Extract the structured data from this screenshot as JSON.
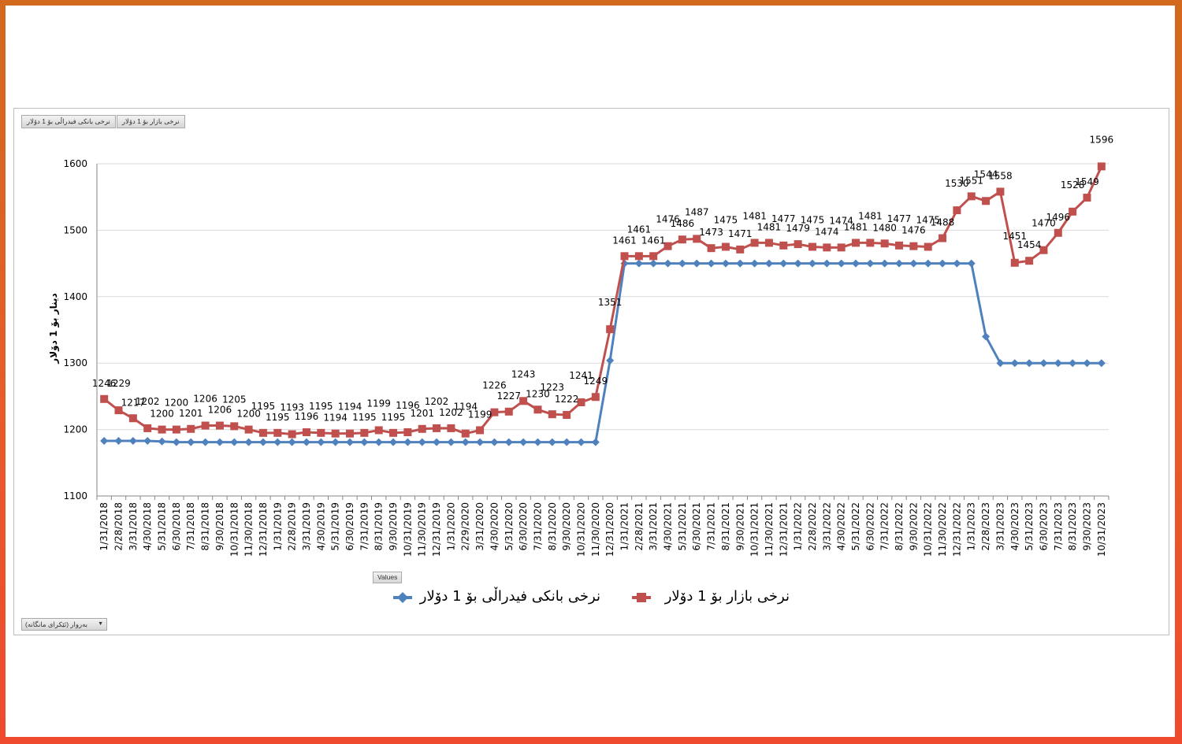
{
  "field_buttons": [
    "نرخی بانکی فیدراڵی بۆ 1 دۆلار",
    "نرخی بازار بۆ 1 دۆلار"
  ],
  "values_button": "Values",
  "filter_button": "بەروار (ئێکرای مانگانە)",
  "colors": {
    "bank": "#4f81bd",
    "market": "#c0504d",
    "grid": "#d9d9d9",
    "axis": "#868686"
  },
  "chart_data": {
    "type": "line",
    "title": "",
    "xlabel": "",
    "ylabel": "دینار بۆ 1 دۆلار",
    "ylim": [
      1100,
      1600
    ],
    "yticks": [
      1100,
      1200,
      1300,
      1400,
      1500,
      1600
    ],
    "grid": true,
    "legend_position": "bottom",
    "x": [
      "1/31/2018",
      "2/28/2018",
      "3/31/2018",
      "4/30/2018",
      "5/31/2018",
      "6/30/2018",
      "7/31/2018",
      "8/31/2018",
      "9/30/2018",
      "10/31/2018",
      "11/30/2018",
      "12/31/2018",
      "1/31/2019",
      "2/28/2019",
      "3/31/2019",
      "4/30/2019",
      "5/31/2019",
      "6/30/2019",
      "7/31/2019",
      "8/31/2019",
      "9/30/2019",
      "10/31/2019",
      "11/30/2019",
      "12/31/2019",
      "1/31/2020",
      "2/29/2020",
      "3/31/2020",
      "4/30/2020",
      "5/31/2020",
      "6/30/2020",
      "7/31/2020",
      "8/31/2020",
      "9/30/2020",
      "10/31/2020",
      "11/30/2020",
      "12/31/2020",
      "1/31/2021",
      "2/28/2021",
      "3/31/2021",
      "4/30/2021",
      "5/31/2021",
      "6/30/2021",
      "7/31/2021",
      "8/31/2021",
      "9/30/2021",
      "10/31/2021",
      "11/30/2021",
      "12/31/2021",
      "1/31/2022",
      "2/28/2022",
      "3/31/2022",
      "4/30/2022",
      "5/31/2022",
      "6/30/2022",
      "7/31/2022",
      "8/31/2022",
      "9/30/2022",
      "10/31/2022",
      "11/30/2022",
      "12/31/2022",
      "1/31/2023",
      "2/28/2023",
      "3/31/2023",
      "4/30/2023",
      "5/31/2023",
      "6/30/2023",
      "7/31/2023",
      "8/31/2023",
      "9/30/2023",
      "10/31/2023"
    ],
    "series": [
      {
        "name": "نرخی بانکی فیدراڵی بۆ 1 دۆلار",
        "marker": "diamond",
        "values": [
          1183,
          1183,
          1183,
          1183,
          1182,
          1181,
          1181,
          1181,
          1181,
          1181,
          1181,
          1181,
          1181,
          1181,
          1181,
          1181,
          1181,
          1181,
          1181,
          1181,
          1181,
          1181,
          1181,
          1181,
          1181,
          1181,
          1181,
          1181,
          1181,
          1181,
          1181,
          1181,
          1181,
          1181,
          1181,
          1304,
          1450,
          1450,
          1450,
          1450,
          1450,
          1450,
          1450,
          1450,
          1450,
          1450,
          1450,
          1450,
          1450,
          1450,
          1450,
          1450,
          1450,
          1450,
          1450,
          1450,
          1450,
          1450,
          1450,
          1450,
          1450,
          1340,
          1300,
          1300,
          1300,
          1300,
          1300,
          1300,
          1300,
          1300
        ]
      },
      {
        "name": "نرخی بازار بۆ 1 دۆلار",
        "marker": "square",
        "values": [
          1246,
          1229,
          1217,
          1202,
          1200,
          1200,
          1201,
          1206,
          1206,
          1205,
          1200,
          1195,
          1195,
          1193,
          1196,
          1195,
          1194,
          1194,
          1195,
          1199,
          1195,
          1196,
          1201,
          1202,
          1202,
          1194,
          1199,
          1226,
          1227,
          1243,
          1230,
          1223,
          1222,
          1241,
          1249,
          1351,
          1461,
          1461,
          1461,
          1476,
          1486,
          1487,
          1473,
          1475,
          1471,
          1481,
          1481,
          1477,
          1479,
          1475,
          1474,
          1474,
          1481,
          1481,
          1480,
          1477,
          1476,
          1475,
          1488,
          1530,
          1551,
          1544,
          1558,
          1451,
          1454,
          1470,
          1496,
          1528,
          1549,
          1596
        ]
      }
    ]
  }
}
